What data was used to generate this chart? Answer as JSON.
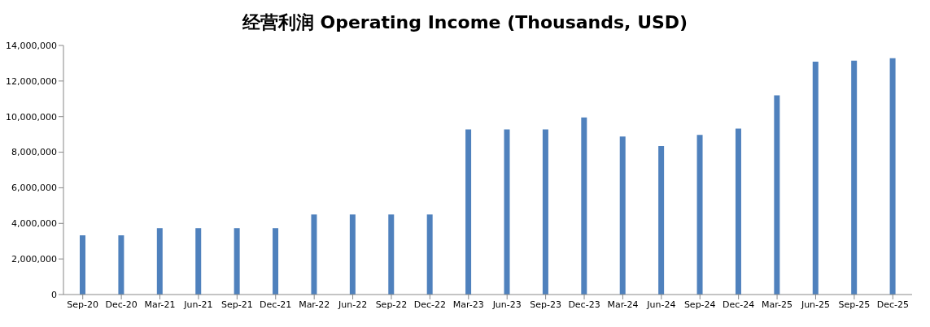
{
  "chart_data": {
    "type": "bar",
    "title": "经营利润 Operating Income (Thousands, USD)",
    "categories": [
      "Sep-20",
      "Dec-20",
      "Mar-21",
      "Jun-21",
      "Sep-21",
      "Dec-21",
      "Mar-22",
      "Jun-22",
      "Sep-22",
      "Dec-22",
      "Mar-23",
      "Jun-23",
      "Sep-23",
      "Dec-23",
      "Mar-24",
      "Jun-24",
      "Sep-24",
      "Dec-24",
      "Mar-25",
      "Jun-25",
      "Sep-25",
      "Dec-25"
    ],
    "values": [
      3330000,
      3330000,
      3730000,
      3730000,
      3730000,
      3730000,
      4500000,
      4500000,
      4500000,
      4500000,
      9280000,
      9280000,
      9280000,
      9950000,
      8880000,
      8340000,
      8970000,
      9330000,
      11200000,
      13090000,
      13140000,
      13280000
    ],
    "color": "#4f81bd",
    "ylim": [
      0,
      14000000
    ],
    "yticks": [
      0,
      {
        "value": 2000000,
        "label": "2,000,000"
      },
      {
        "value": 4000000,
        "label": "4,000,000"
      },
      {
        "value": 6000000,
        "label": "6,000,000"
      },
      {
        "value": 8000000,
        "label": "8,000,000"
      },
      {
        "value": 10000000,
        "label": "10,000,000"
      },
      {
        "value": 12000000,
        "label": "12,000,000"
      },
      {
        "value": 14000000,
        "label": "14,000,000"
      }
    ],
    "grid": false,
    "legend": false
  }
}
